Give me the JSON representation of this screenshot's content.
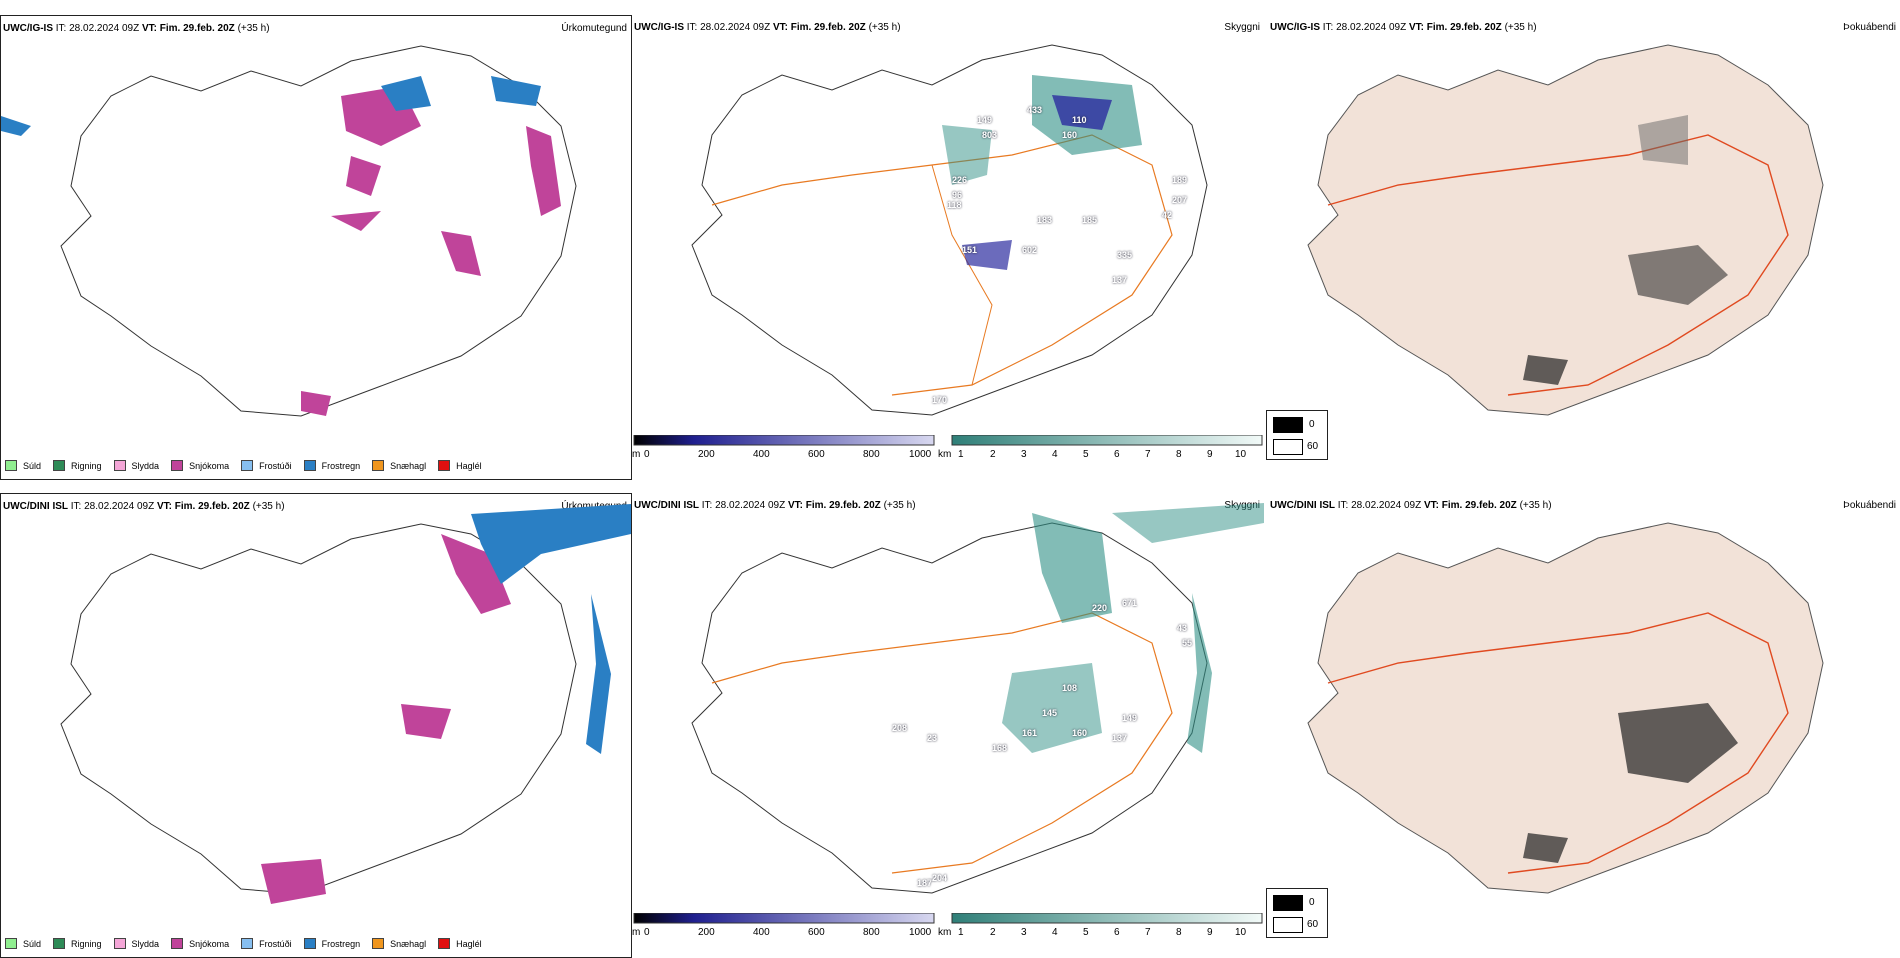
{
  "rows": [
    {
      "model": "UWC/IG-IS",
      "panels": [
        {
          "title": "Úrkomutegund"
        },
        {
          "title": "Skyggni"
        },
        {
          "title": "Þokuábendi"
        }
      ]
    },
    {
      "model": "UWC/DINI ISL",
      "panels": [
        {
          "title": "Úrkomutegund"
        },
        {
          "title": "Skyggni"
        },
        {
          "title": "Þokuábendi"
        }
      ]
    }
  ],
  "header": {
    "it_label": "IT:",
    "it_value": "28.02.2024 09Z",
    "vt_label": "VT:",
    "vt_value": "Fim. 29.feb. 20Z",
    "lead": "(+35 h)"
  },
  "precip_legend": [
    {
      "label": "Súld",
      "color": "#90ee90"
    },
    {
      "label": "Rigning",
      "color": "#2e8b57"
    },
    {
      "label": "Slydda",
      "color": "#f4a6d7"
    },
    {
      "label": "Snjókoma",
      "color": "#c0449a"
    },
    {
      "label": "Frostúði",
      "color": "#87bff0"
    },
    {
      "label": "Frostregn",
      "color": "#2a7fc4"
    },
    {
      "label": "Snæhagl",
      "color": "#f0961e"
    },
    {
      "label": "Haglél",
      "color": "#e01010"
    }
  ],
  "vis_colorbar": {
    "m_unit": "m",
    "m_ticks": [
      "0",
      "200",
      "400",
      "600",
      "800",
      "1000"
    ],
    "km_unit": "km",
    "km_ticks": [
      "1",
      "2",
      "3",
      "4",
      "5",
      "6",
      "7",
      "8",
      "9",
      "10"
    ]
  },
  "fog_legend": {
    "high": "0",
    "low": "60"
  },
  "vis_labels_top": [
    "149",
    "803",
    "433",
    "110",
    "160",
    "226",
    "96",
    "118",
    "183",
    "185",
    "151",
    "602",
    "335",
    "137",
    "189",
    "207",
    "42",
    "170"
  ],
  "vis_labels_bottom": [
    "220",
    "671",
    "43",
    "55",
    "108",
    "145",
    "161",
    "160",
    "137",
    "149",
    "208",
    "23",
    "168",
    "187",
    "204"
  ],
  "colors": {
    "snow": "#c0449a",
    "freezing_rain": "#2a7fc4",
    "vis_teal": "#2f8f86",
    "vis_blue": "#2c2ca0",
    "roads": "#e87a22",
    "fog_land": "#f2e2d8",
    "fog_roads": "#e04a20"
  }
}
